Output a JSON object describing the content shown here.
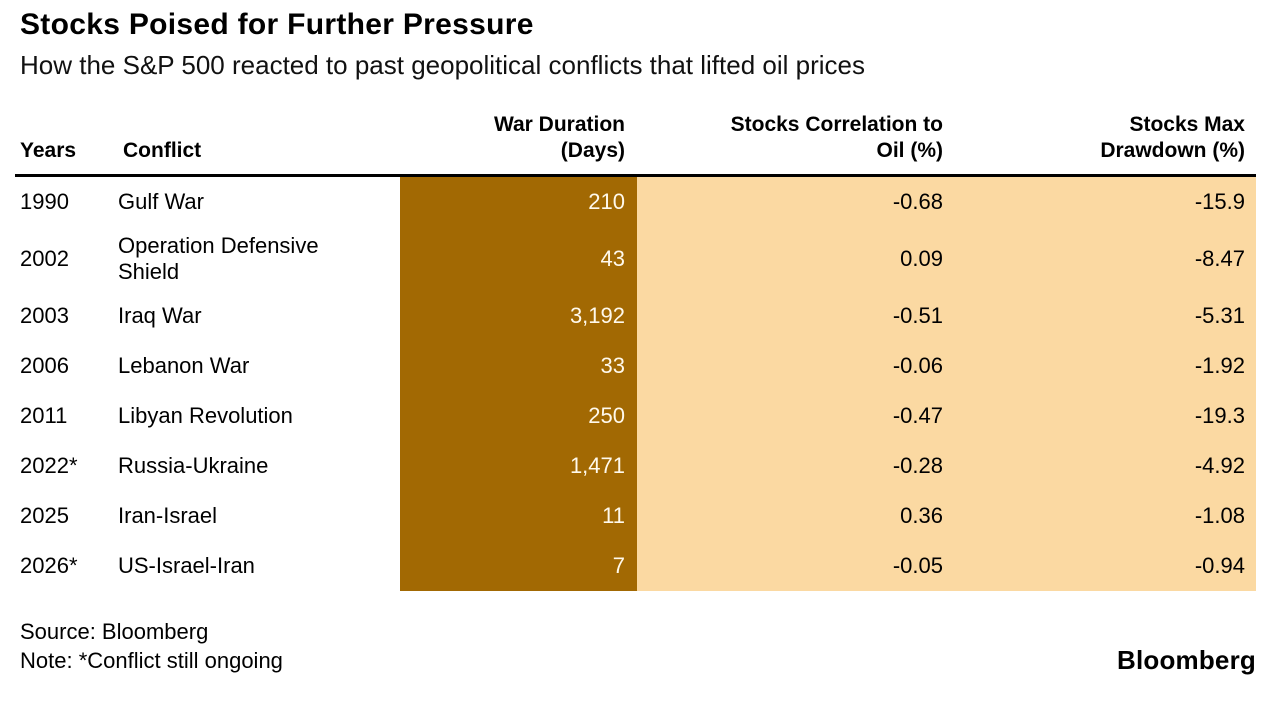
{
  "header": {
    "title": "Stocks Poised for Further Pressure",
    "subtitle": "How the S&P 500 reacted to past geopolitical conflicts that lifted oil prices"
  },
  "table": {
    "columns": [
      {
        "key": "years",
        "label": "Years"
      },
      {
        "key": "conflict",
        "label": "Conflict"
      },
      {
        "key": "duration",
        "label": "War Duration (Days)",
        "line1": "War Duration",
        "line2": "(Days)"
      },
      {
        "key": "correlation",
        "label": "Stocks Correlation to Oil (%)",
        "line1": "Stocks Correlation to",
        "line2": "Oil (%)"
      },
      {
        "key": "drawdown",
        "label": "Stocks Max Drawdown (%)",
        "line1": "Stocks Max",
        "line2": "Drawdown (%)"
      }
    ],
    "rows": [
      {
        "years": "1990",
        "conflict": "Gulf War",
        "duration": "210",
        "correlation": "-0.68",
        "drawdown": "-15.9"
      },
      {
        "years": "2002",
        "conflict": "Operation Defensive Shield",
        "duration": "43",
        "correlation": "0.09",
        "drawdown": "-8.47"
      },
      {
        "years": "2003",
        "conflict": "Iraq War",
        "duration": "3,192",
        "correlation": "-0.51",
        "drawdown": "-5.31"
      },
      {
        "years": "2006",
        "conflict": "Lebanon War",
        "duration": "33",
        "correlation": "-0.06",
        "drawdown": "-1.92"
      },
      {
        "years": "2011",
        "conflict": "Libyan Revolution",
        "duration": "250",
        "correlation": "-0.47",
        "drawdown": "-19.3"
      },
      {
        "years": "2022*",
        "conflict": "Russia-Ukraine",
        "duration": "1,471",
        "correlation": "-0.28",
        "drawdown": "-4.92"
      },
      {
        "years": "2025",
        "conflict": "Iran-Israel",
        "duration": "11",
        "correlation": "0.36",
        "drawdown": "-1.08"
      },
      {
        "years": "2026*",
        "conflict": "US-Israel-Iran",
        "duration": "7",
        "correlation": "-0.05",
        "drawdown": "-0.94"
      }
    ]
  },
  "footer": {
    "source": "Source: Bloomberg",
    "note": "Note: *Conflict still ongoing",
    "brand": "Bloomberg"
  },
  "colors": {
    "duration_bg": "#A26903",
    "duration_text": "#FFF9EC",
    "highlight_bg": "#FBD9A2",
    "rule": "#000000"
  },
  "chart_data": {
    "type": "table",
    "title": "Stocks Poised for Further Pressure",
    "subtitle": "How the S&P 500 reacted to past geopolitical conflicts that lifted oil prices",
    "columns": [
      "Years",
      "Conflict",
      "War Duration (Days)",
      "Stocks Correlation to Oil (%)",
      "Stocks Max Drawdown (%)"
    ],
    "rows": [
      [
        "1990",
        "Gulf War",
        210,
        -0.68,
        -15.9
      ],
      [
        "2002",
        "Operation Defensive Shield",
        43,
        0.09,
        -8.47
      ],
      [
        "2003",
        "Iraq War",
        3192,
        -0.51,
        -5.31
      ],
      [
        "2006",
        "Lebanon War",
        33,
        -0.06,
        -1.92
      ],
      [
        "2011",
        "Libyan Revolution",
        250,
        -0.47,
        -19.3
      ],
      [
        "2022*",
        "Russia-Ukraine",
        1471,
        -0.28,
        -4.92
      ],
      [
        "2025",
        "Iran-Israel",
        11,
        0.36,
        -1.08
      ],
      [
        "2026*",
        "US-Israel-Iran",
        7,
        -0.05,
        -0.94
      ]
    ],
    "column_highlights": {
      "War Duration (Days)": "#A26903",
      "Stocks Correlation to Oil (%)": "#FBD9A2",
      "Stocks Max Drawdown (%)": "#FBD9A2"
    },
    "source": "Bloomberg",
    "note": "*Conflict still ongoing"
  }
}
